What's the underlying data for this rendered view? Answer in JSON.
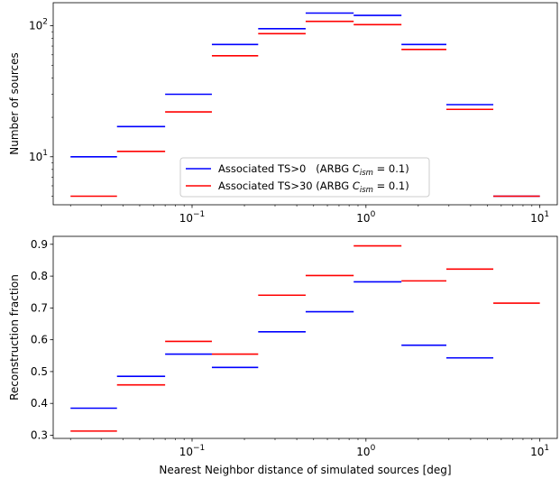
{
  "chart_data": [
    {
      "type": "step",
      "xscale": "log",
      "yscale": "log",
      "xlim": [
        0.0159,
        12.6
      ],
      "ylim": [
        4.3,
        150
      ],
      "xticks": [
        0.1,
        1,
        10
      ],
      "xtick_labels": [
        {
          "base": "10",
          "exp": "−1"
        },
        {
          "base": "10",
          "exp": "0"
        },
        {
          "base": "10",
          "exp": "1"
        }
      ],
      "yticks": [
        10,
        100
      ],
      "ytick_labels": [
        {
          "base": "10",
          "exp": "1"
        },
        {
          "base": "10",
          "exp": "2"
        }
      ],
      "xlabel": "",
      "ylabel": "Number of sources",
      "legend": {
        "placement": "lower-center",
        "entries": [
          {
            "prefix": "Associated TS>0   (ARBG ",
            "var": "C",
            "sub": "ism",
            "suffix": " = 0.1)",
            "color": "#0000ff"
          },
          {
            "prefix": "Associated TS>30 (ARBG ",
            "var": "C",
            "sub": "ism",
            "suffix": " = 0.1)",
            "color": "#ff0000"
          }
        ]
      },
      "series": [
        {
          "color": "#0000ff",
          "bins": [
            [
              0.02,
              0.037
            ],
            [
              0.037,
              0.07
            ],
            [
              0.07,
              0.13
            ],
            [
              0.13,
              0.24
            ],
            [
              0.24,
              0.45
            ],
            [
              0.45,
              0.85
            ],
            [
              0.85,
              1.6
            ],
            [
              1.6,
              2.9
            ],
            [
              2.9,
              5.4
            ],
            [
              5.4,
              10
            ]
          ],
          "values": [
            10,
            17,
            30,
            72,
            95,
            125,
            120,
            72,
            25,
            5
          ]
        },
        {
          "color": "#ff0000",
          "bins": [
            [
              0.02,
              0.037
            ],
            [
              0.037,
              0.07
            ],
            [
              0.07,
              0.13
            ],
            [
              0.13,
              0.24
            ],
            [
              0.24,
              0.45
            ],
            [
              0.45,
              0.85
            ],
            [
              0.85,
              1.6
            ],
            [
              1.6,
              2.9
            ],
            [
              2.9,
              5.4
            ],
            [
              5.4,
              10
            ]
          ],
          "values": [
            5,
            11,
            22,
            59,
            87,
            108,
            102,
            66,
            23,
            5
          ]
        }
      ]
    },
    {
      "type": "step",
      "xscale": "log",
      "yscale": "linear",
      "xlim": [
        0.0159,
        12.6
      ],
      "ylim": [
        0.29,
        0.925
      ],
      "xticks": [
        0.1,
        1,
        10
      ],
      "xtick_labels": [
        {
          "base": "10",
          "exp": "−1"
        },
        {
          "base": "10",
          "exp": "0"
        },
        {
          "base": "10",
          "exp": "1"
        }
      ],
      "yticks": [
        0.3,
        0.4,
        0.5,
        0.6,
        0.7,
        0.8,
        0.9
      ],
      "ytick_labels": [
        "0.3",
        "0.4",
        "0.5",
        "0.6",
        "0.7",
        "0.8",
        "0.9"
      ],
      "xlabel": "Nearest Neighbor distance of simulated sources [deg]",
      "ylabel": "Reconstruction fraction",
      "series": [
        {
          "color": "#0000ff",
          "bins": [
            [
              0.02,
              0.037
            ],
            [
              0.037,
              0.07
            ],
            [
              0.07,
              0.13
            ],
            [
              0.13,
              0.24
            ],
            [
              0.24,
              0.45
            ],
            [
              0.45,
              0.85
            ],
            [
              0.85,
              1.6
            ],
            [
              1.6,
              2.9
            ],
            [
              2.9,
              5.4
            ]
          ],
          "values": [
            0.385,
            0.485,
            0.555,
            0.513,
            0.625,
            0.688,
            0.782,
            0.583,
            0.543
          ]
        },
        {
          "color": "#ff0000",
          "bins": [
            [
              0.02,
              0.037
            ],
            [
              0.037,
              0.07
            ],
            [
              0.07,
              0.13
            ],
            [
              0.13,
              0.24
            ],
            [
              0.24,
              0.45
            ],
            [
              0.45,
              0.85
            ],
            [
              0.85,
              1.6
            ],
            [
              1.6,
              2.9
            ],
            [
              2.9,
              5.4
            ],
            [
              5.4,
              10
            ]
          ],
          "values": [
            0.313,
            0.458,
            0.595,
            0.555,
            0.74,
            0.802,
            0.895,
            0.785,
            0.822,
            0.715
          ]
        }
      ]
    }
  ]
}
